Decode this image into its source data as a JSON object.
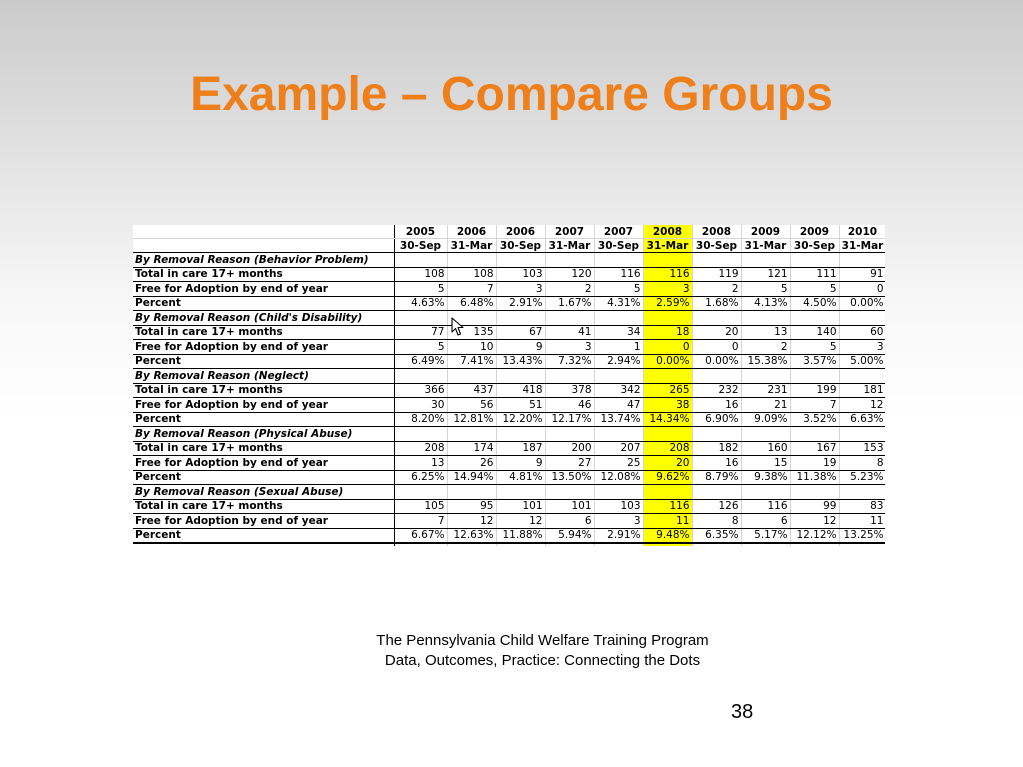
{
  "slide": {
    "title": "Example – Compare Groups",
    "footer_line1": "The Pennsylvania Child Welfare Training Program",
    "footer_line2": "Data, Outcomes, Practice: Connecting the Dots",
    "page_number": "38"
  },
  "table": {
    "years": [
      "2005",
      "2006",
      "2006",
      "2007",
      "2007",
      "2008",
      "2008",
      "2009",
      "2009",
      "2010"
    ],
    "dates": [
      "30-Sep",
      "31-Mar",
      "30-Sep",
      "31-Mar",
      "30-Sep",
      "31-Mar",
      "30-Sep",
      "31-Mar",
      "30-Sep",
      "31-Mar"
    ],
    "highlight_color": "#ffff00",
    "highlighted_column": "2008 31-Mar",
    "row_labels": {
      "total": "Total in care 17+ months",
      "free": "Free for Adoption by end of year",
      "percent": "Percent"
    },
    "sections": [
      {
        "title": "By Removal Reason (Behavior Problem)",
        "total": [
          "108",
          "108",
          "103",
          "120",
          "116",
          "116",
          "119",
          "121",
          "111",
          "91"
        ],
        "free": [
          "5",
          "7",
          "3",
          "2",
          "5",
          "3",
          "2",
          "5",
          "5",
          "0"
        ],
        "percent": [
          "4.63%",
          "6.48%",
          "2.91%",
          "1.67%",
          "4.31%",
          "2.59%",
          "1.68%",
          "4.13%",
          "4.50%",
          "0.00%"
        ]
      },
      {
        "title": "By Removal Reason (Child's Disability)",
        "total": [
          "77",
          "135",
          "67",
          "41",
          "34",
          "18",
          "20",
          "13",
          "140",
          "60"
        ],
        "free": [
          "5",
          "10",
          "9",
          "3",
          "1",
          "0",
          "0",
          "2",
          "5",
          "3"
        ],
        "percent": [
          "6.49%",
          "7.41%",
          "13.43%",
          "7.32%",
          "2.94%",
          "0.00%",
          "0.00%",
          "15.38%",
          "3.57%",
          "5.00%"
        ]
      },
      {
        "title": "By Removal Reason (Neglect)",
        "total": [
          "366",
          "437",
          "418",
          "378",
          "342",
          "265",
          "232",
          "231",
          "199",
          "181"
        ],
        "free": [
          "30",
          "56",
          "51",
          "46",
          "47",
          "38",
          "16",
          "21",
          "7",
          "12"
        ],
        "percent": [
          "8.20%",
          "12.81%",
          "12.20%",
          "12.17%",
          "13.74%",
          "14.34%",
          "6.90%",
          "9.09%",
          "3.52%",
          "6.63%"
        ]
      },
      {
        "title": "By Removal Reason (Physical Abuse)",
        "total": [
          "208",
          "174",
          "187",
          "200",
          "207",
          "208",
          "182",
          "160",
          "167",
          "153"
        ],
        "free": [
          "13",
          "26",
          "9",
          "27",
          "25",
          "20",
          "16",
          "15",
          "19",
          "8"
        ],
        "percent": [
          "6.25%",
          "14.94%",
          "4.81%",
          "13.50%",
          "12.08%",
          "9.62%",
          "8.79%",
          "9.38%",
          "11.38%",
          "5.23%"
        ]
      },
      {
        "title": "By Removal Reason (Sexual Abuse)",
        "total": [
          "105",
          "95",
          "101",
          "101",
          "103",
          "116",
          "126",
          "116",
          "99",
          "83"
        ],
        "free": [
          "7",
          "12",
          "12",
          "6",
          "3",
          "11",
          "8",
          "6",
          "12",
          "11"
        ],
        "percent": [
          "6.67%",
          "12.63%",
          "11.88%",
          "5.94%",
          "2.91%",
          "9.48%",
          "6.35%",
          "5.17%",
          "12.12%",
          "13.25%"
        ]
      }
    ]
  }
}
